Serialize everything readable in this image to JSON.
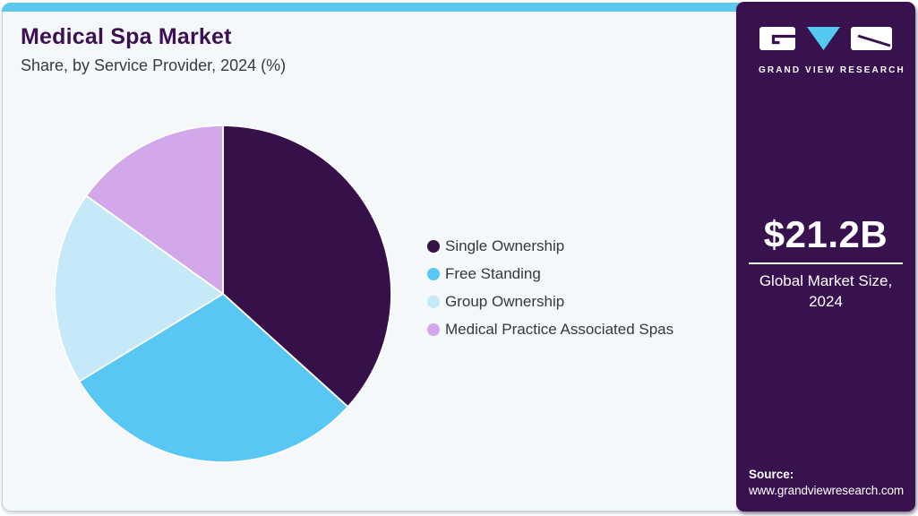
{
  "header": {
    "title": "Medical Spa Market",
    "subtitle": "Share, by Service Provider, 2024 (%)"
  },
  "sidebar": {
    "brand_name": "GRAND VIEW RESEARCH",
    "market_size_value": "$21.2B",
    "market_size_label": "Global Market Size, 2024",
    "source_label": "Source:",
    "source_url": "www.grandviewresearch.com"
  },
  "colors": {
    "accent_cyan": "#5cc8f0",
    "sidebar_purple": "#38114f",
    "card_background": "#f4f8fb",
    "title_purple": "#3d1053"
  },
  "chart_data": {
    "type": "pie",
    "title": "Medical Spa Market Share, by Service Provider, 2024 (%)",
    "values_unit": "%",
    "start_angle_deg": 0,
    "direction": "clockwise",
    "legend_position": "right",
    "slices": [
      {
        "label": "Single Ownership",
        "value": 36.7,
        "color": "#361049"
      },
      {
        "label": "Free Standing",
        "value": 29.6,
        "color": "#58c7f3"
      },
      {
        "label": "Group Ownership",
        "value": 18.6,
        "color": "#c5e9f8"
      },
      {
        "label": "Medical Practice Associated Spas",
        "value": 15.1,
        "color": "#d3a8ea"
      }
    ]
  }
}
